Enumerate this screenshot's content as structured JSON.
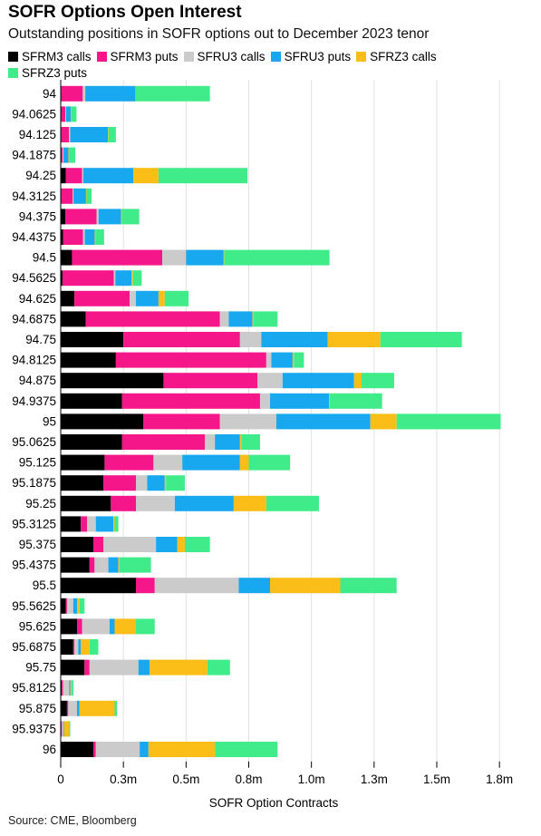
{
  "colors": {
    "SFRM3 calls": "#000000",
    "SFRM3 puts": "#f5168a",
    "SFRU3 calls": "#cbcbcb",
    "SFRU3 puts": "#18a8f0",
    "SFRZ3 calls": "#fbbd17",
    "SFRZ3 puts": "#40ec8a"
  },
  "source": "Source: CME, Bloomberg",
  "chart_data": {
    "type": "bar",
    "orientation": "horizontal",
    "stacked": true,
    "title": "SOFR Options Open Interest",
    "subtitle": "Outstanding positions in SOFR options out to December 2023 tenor",
    "xlabel": "SOFR Option Contracts",
    "xlim": [
      0,
      1800000
    ],
    "xticks": [
      0,
      250000,
      500000,
      750000,
      1000000,
      1250000,
      1500000,
      1750000
    ],
    "xtick_labels": [
      "0",
      "0.3m",
      "0.5m",
      "0.8m",
      "1.0m",
      "1.3m",
      "1.5m",
      "1.8m"
    ],
    "legend_position": "top",
    "grid": "vertical",
    "categories": [
      "94",
      "94.0625",
      "94.125",
      "94.1875",
      "94.25",
      "94.3125",
      "94.375",
      "94.4375",
      "94.5",
      "94.5625",
      "94.625",
      "94.6875",
      "94.75",
      "94.8125",
      "94.875",
      "94.9375",
      "95",
      "95.0625",
      "95.125",
      "95.1875",
      "95.25",
      "95.3125",
      "95.375",
      "95.4375",
      "95.5",
      "95.5625",
      "95.625",
      "95.6875",
      "95.75",
      "95.8125",
      "95.875",
      "95.9375",
      "96"
    ],
    "series": [
      {
        "name": "SFRM3 calls",
        "values": [
          3000,
          3000,
          3000,
          3000,
          20000,
          3000,
          18000,
          9000,
          45000,
          7000,
          55000,
          100000,
          250000,
          220000,
          410000,
          245000,
          330000,
          245000,
          175000,
          170000,
          200000,
          80000,
          130000,
          115000,
          300000,
          20000,
          65000,
          50000,
          95000,
          4000,
          25000,
          2000,
          130000
        ]
      },
      {
        "name": "SFRM3 puts",
        "values": [
          85000,
          15000,
          30000,
          5000,
          65000,
          45000,
          125000,
          80000,
          360000,
          205000,
          220000,
          535000,
          465000,
          600000,
          375000,
          550000,
          305000,
          330000,
          195000,
          130000,
          100000,
          25000,
          40000,
          20000,
          75000,
          5000,
          20000,
          5000,
          20000,
          5000,
          5000,
          3000,
          10000
        ]
      },
      {
        "name": "SFRU3 calls",
        "values": [
          10000,
          3000,
          5000,
          3000,
          5000,
          3000,
          8000,
          7000,
          95000,
          6000,
          25000,
          35000,
          85000,
          20000,
          100000,
          40000,
          225000,
          40000,
          115000,
          45000,
          155000,
          35000,
          210000,
          55000,
          335000,
          25000,
          110000,
          15000,
          195000,
          25000,
          35000,
          5000,
          175000
        ]
      },
      {
        "name": "SFRU3 puts",
        "values": [
          200000,
          20000,
          150000,
          20000,
          200000,
          50000,
          90000,
          40000,
          150000,
          65000,
          90000,
          95000,
          265000,
          85000,
          285000,
          235000,
          375000,
          100000,
          230000,
          70000,
          235000,
          70000,
          85000,
          40000,
          125000,
          15000,
          20000,
          10000,
          45000,
          5000,
          10000,
          3000,
          35000
        ]
      },
      {
        "name": "SFRZ3 calls",
        "values": [
          2000,
          2000,
          2000,
          2000,
          100000,
          2000,
          2000,
          2000,
          2000,
          5000,
          25000,
          5000,
          210000,
          5000,
          30000,
          2000,
          105000,
          5000,
          35000,
          5000,
          130000,
          5000,
          30000,
          5000,
          280000,
          10000,
          85000,
          35000,
          230000,
          5000,
          140000,
          20000,
          265000
        ]
      },
      {
        "name": "SFRZ3 puts",
        "values": [
          295000,
          20000,
          30000,
          25000,
          355000,
          20000,
          70000,
          35000,
          420000,
          35000,
          95000,
          95000,
          325000,
          40000,
          130000,
          210000,
          415000,
          75000,
          165000,
          75000,
          210000,
          15000,
          100000,
          125000,
          225000,
          20000,
          75000,
          35000,
          90000,
          7000,
          10000,
          5000,
          250000
        ]
      }
    ]
  }
}
